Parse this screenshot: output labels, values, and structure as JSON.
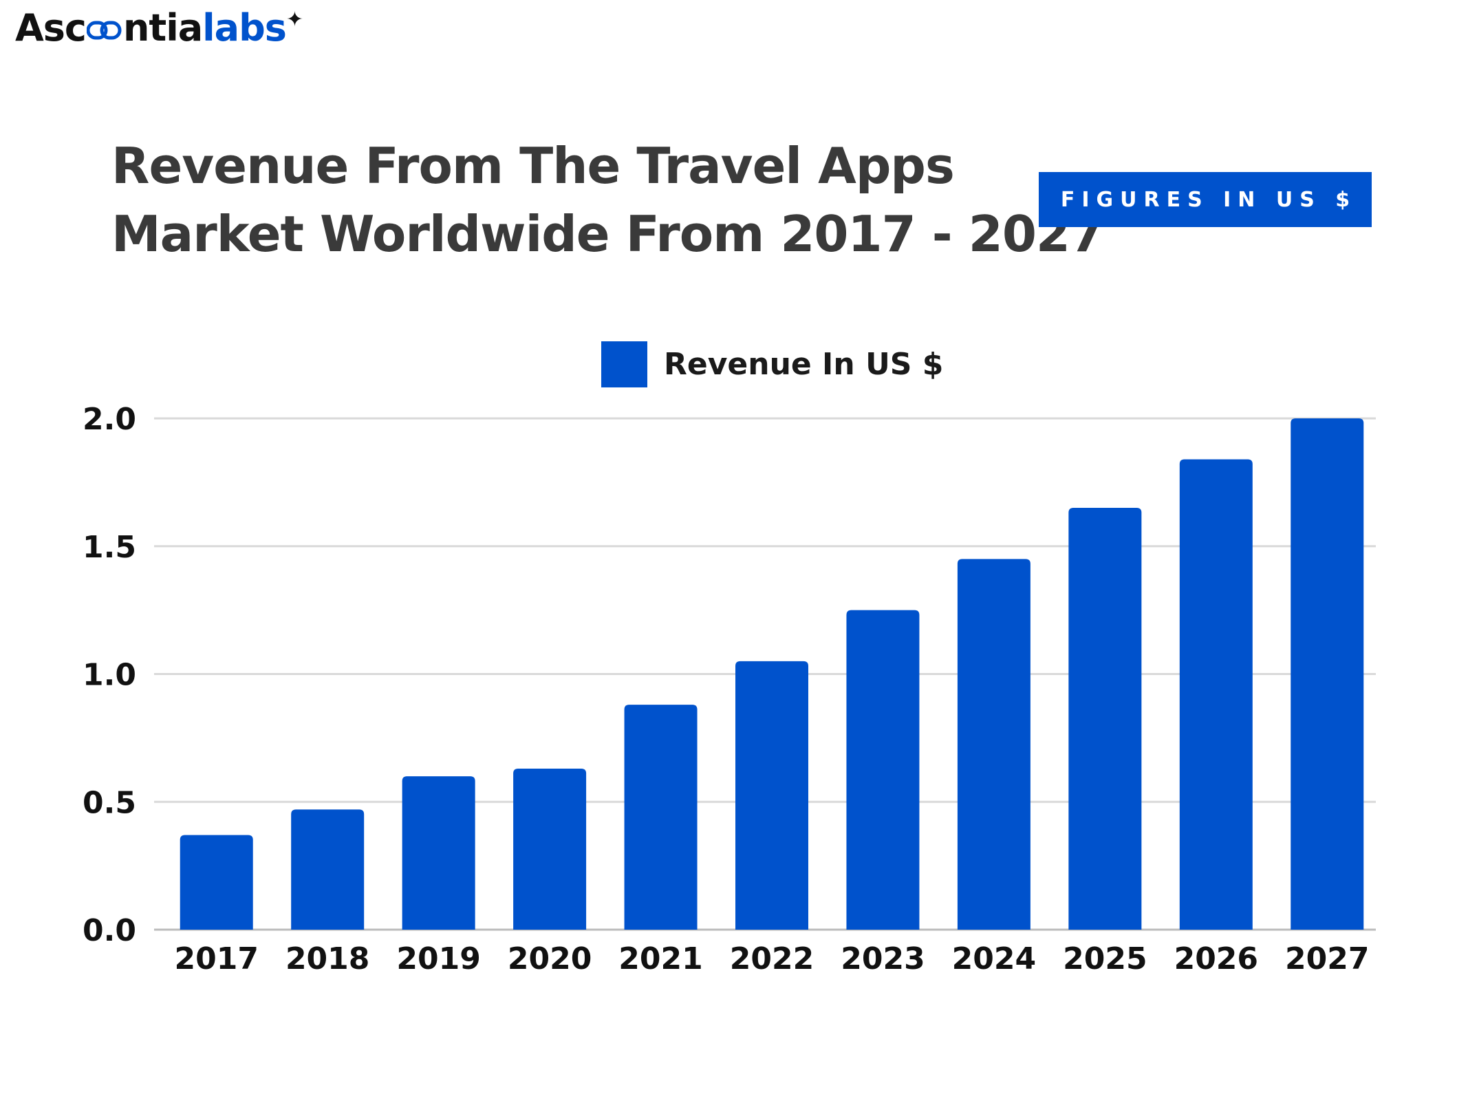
{
  "brand": {
    "logo_part1": "Asc",
    "logo_part2": "ntia",
    "logo_part3": "labs"
  },
  "badge": "FIGURES IN US $",
  "colors": {
    "bar": "#0052CC",
    "grid": "#d9d9d9",
    "title": "#3a3a3a"
  },
  "chart_data": {
    "type": "bar",
    "title": "Revenue From The Travel Apps Market Worldwide From 2017 - 2027",
    "title_lines": [
      "Revenue From The Travel Apps",
      "Market Worldwide From 2017 - 2027"
    ],
    "xlabel": "",
    "ylabel": "",
    "categories": [
      "2017",
      "2018",
      "2019",
      "2020",
      "2021",
      "2022",
      "2023",
      "2024",
      "2025",
      "2026",
      "2027"
    ],
    "series": [
      {
        "name": "Revenue In US $",
        "values": [
          0.37,
          0.47,
          0.6,
          0.63,
          0.88,
          1.05,
          1.25,
          1.45,
          1.65,
          1.84,
          2.0
        ]
      }
    ],
    "ylim": [
      0,
      2.0
    ],
    "yticks": [
      "0.0",
      "0.5",
      "1.0",
      "1.5",
      "2.0"
    ],
    "grid": true,
    "legend": "top-center"
  }
}
